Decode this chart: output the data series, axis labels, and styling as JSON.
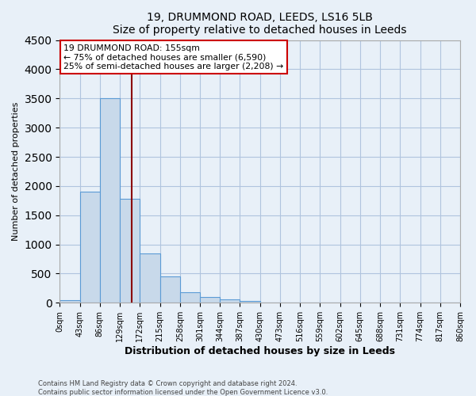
{
  "title": "19, DRUMMOND ROAD, LEEDS, LS16 5LB",
  "subtitle": "Size of property relative to detached houses in Leeds",
  "xlabel": "Distribution of detached houses by size in Leeds",
  "ylabel": "Number of detached properties",
  "bin_edges": [
    0,
    43,
    86,
    129,
    172,
    215,
    258,
    301,
    344,
    387,
    430,
    473,
    516,
    559,
    602,
    645,
    688,
    731,
    774,
    817,
    860
  ],
  "bin_counts": [
    50,
    1900,
    3500,
    1780,
    850,
    450,
    175,
    100,
    55,
    30,
    0,
    0,
    0,
    0,
    0,
    0,
    0,
    0,
    0,
    0
  ],
  "bar_color": "#c8d9ea",
  "bar_edge_color": "#5b9bd5",
  "vertical_line_x": 155,
  "vertical_line_color": "#8b0000",
  "annotation_text": "19 DRUMMOND ROAD: 155sqm\n← 75% of detached houses are smaller (6,590)\n25% of semi-detached houses are larger (2,208) →",
  "annotation_box_color": "#ffffff",
  "annotation_box_edge_color": "#cc0000",
  "ylim": [
    0,
    4500
  ],
  "tick_labels": [
    "0sqm",
    "43sqm",
    "86sqm",
    "129sqm",
    "172sqm",
    "215sqm",
    "258sqm",
    "301sqm",
    "344sqm",
    "387sqm",
    "430sqm",
    "473sqm",
    "516sqm",
    "559sqm",
    "602sqm",
    "645sqm",
    "688sqm",
    "731sqm",
    "774sqm",
    "817sqm",
    "860sqm"
  ],
  "grid_color": "#b0c4de",
  "background_color": "#e8f0f8",
  "footer_line1": "Contains HM Land Registry data © Crown copyright and database right 2024.",
  "footer_line2": "Contains public sector information licensed under the Open Government Licence v3.0."
}
